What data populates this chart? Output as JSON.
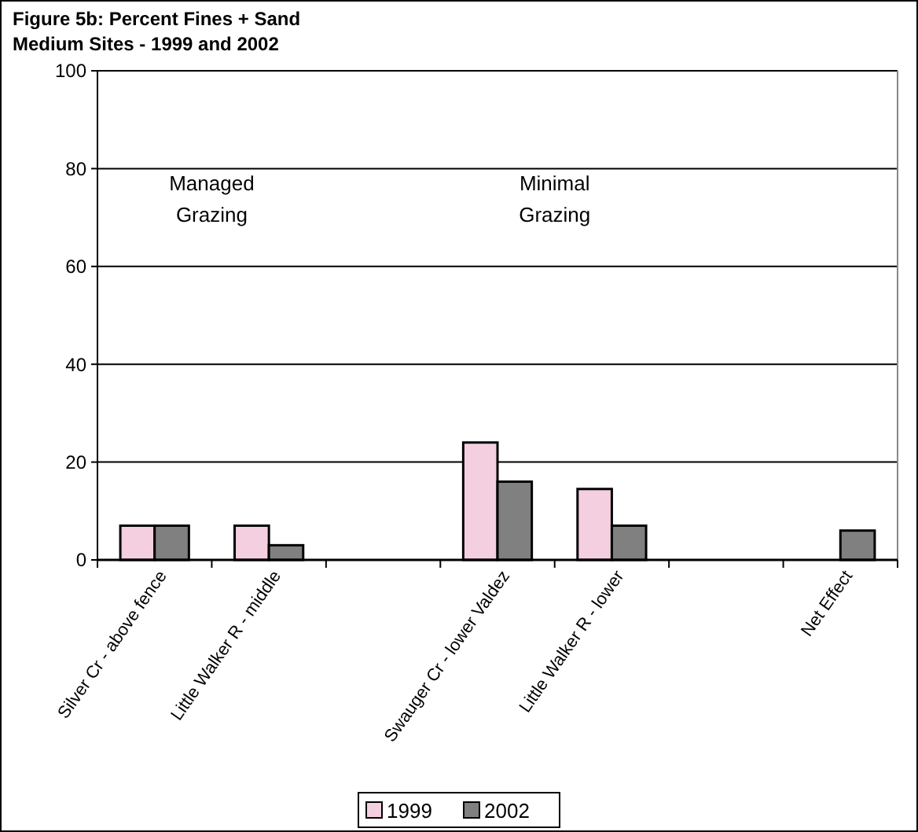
{
  "chart_data": {
    "type": "bar",
    "title": "Figure 5b: Percent Fines + Sand",
    "subtitle": "Medium Sites - 1999 and 2002",
    "categories": [
      "Silver Cr - above fence",
      "Little Walker R - middle",
      null,
      "Swauger Cr - lower Valdez",
      "Little Walker R - lower",
      null,
      "Net Effect"
    ],
    "series": [
      {
        "name": "1999",
        "color": "#f4cfdf",
        "values": [
          7,
          7,
          null,
          24,
          14.5,
          null,
          null
        ]
      },
      {
        "name": "2002",
        "color": "#808080",
        "values": [
          7,
          3,
          null,
          16,
          7,
          null,
          6
        ]
      }
    ],
    "ylim": [
      0,
      100
    ],
    "yticks": [
      0,
      20,
      40,
      60,
      80,
      100
    ],
    "grid": "y",
    "legend": "bottom",
    "annotations": [
      "Managed\nGrazing",
      "Minimal\nGrazing"
    ]
  }
}
